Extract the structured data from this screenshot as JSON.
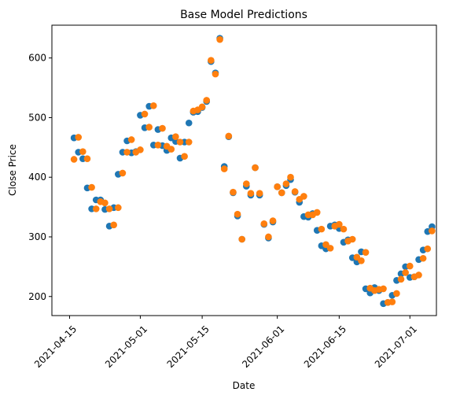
{
  "chart_data": {
    "type": "scatter",
    "title": "Base Model Predictions",
    "xlabel": "Date",
    "ylabel": "Close Price",
    "x_type": "date",
    "xlim": [
      "2021-04-11",
      "2021-07-07"
    ],
    "ylim": [
      168,
      655
    ],
    "x_ticks": [
      "2021-04-15",
      "2021-05-01",
      "2021-05-15",
      "2021-06-01",
      "2021-06-15",
      "2021-07-01"
    ],
    "y_ticks": [
      200,
      300,
      400,
      500,
      600
    ],
    "grid": false,
    "legend": "none",
    "x": [
      "2021-04-16",
      "2021-04-17",
      "2021-04-18",
      "2021-04-19",
      "2021-04-20",
      "2021-04-21",
      "2021-04-22",
      "2021-04-23",
      "2021-04-24",
      "2021-04-25",
      "2021-04-26",
      "2021-04-27",
      "2021-04-28",
      "2021-04-29",
      "2021-04-30",
      "2021-05-01",
      "2021-05-02",
      "2021-05-03",
      "2021-05-04",
      "2021-05-05",
      "2021-05-06",
      "2021-05-07",
      "2021-05-08",
      "2021-05-09",
      "2021-05-10",
      "2021-05-11",
      "2021-05-12",
      "2021-05-13",
      "2021-05-14",
      "2021-05-15",
      "2021-05-16",
      "2021-05-17",
      "2021-05-18",
      "2021-05-19",
      "2021-05-20",
      "2021-05-21",
      "2021-05-22",
      "2021-05-23",
      "2021-05-24",
      "2021-05-25",
      "2021-05-26",
      "2021-05-27",
      "2021-05-28",
      "2021-05-29",
      "2021-05-30",
      "2021-05-31",
      "2021-06-01",
      "2021-06-02",
      "2021-06-03",
      "2021-06-04",
      "2021-06-05",
      "2021-06-06",
      "2021-06-07",
      "2021-06-08",
      "2021-06-09",
      "2021-06-10",
      "2021-06-11",
      "2021-06-12",
      "2021-06-13",
      "2021-06-14",
      "2021-06-15",
      "2021-06-16",
      "2021-06-17",
      "2021-06-18",
      "2021-06-19",
      "2021-06-20",
      "2021-06-21",
      "2021-06-22",
      "2021-06-23",
      "2021-06-24",
      "2021-06-25",
      "2021-06-26",
      "2021-06-27",
      "2021-06-28",
      "2021-06-29",
      "2021-06-30",
      "2021-07-01",
      "2021-07-02",
      "2021-07-03"
    ],
    "series": [
      {
        "color": "#1f77b4",
        "values": [
          466,
          442,
          431,
          382,
          347,
          362,
          362,
          346,
          318,
          349,
          405,
          442,
          461,
          441,
          443,
          504,
          483,
          519,
          454,
          480,
          453,
          445,
          466,
          460,
          432,
          459,
          491,
          509,
          510,
          517,
          527,
          594,
          575,
          633,
          418,
          468,
          374,
          335,
          296,
          385,
          370,
          416,
          370,
          321,
          298,
          325,
          384,
          374,
          386,
          396,
          375,
          358,
          334,
          333,
          339,
          311,
          285,
          280,
          318,
          320,
          314,
          291,
          295,
          265,
          258,
          275,
          213,
          206,
          215,
          210,
          188,
          190,
          202,
          227,
          238,
          250,
          232,
          233,
          262
        ],
        "values_late": [
          278,
          309,
          317
        ]
      },
      {
        "color": "#ff7f0e",
        "values": [
          430,
          467,
          443,
          431,
          383,
          347,
          359,
          357,
          347,
          320,
          349,
          407,
          442,
          463,
          442,
          446,
          506,
          484,
          520,
          454,
          482,
          452,
          447,
          468,
          459,
          435,
          459,
          511,
          513,
          518,
          529,
          596,
          573,
          631,
          414,
          469,
          375,
          338,
          296,
          389,
          373,
          416,
          373,
          322,
          300,
          327,
          384,
          374,
          389,
          400,
          376,
          363,
          368,
          337,
          337,
          341,
          313,
          287,
          281,
          318,
          321,
          313,
          293,
          296,
          266,
          260,
          274,
          214,
          210,
          212,
          213,
          190,
          191,
          205,
          229,
          240,
          251,
          233,
          236
        ],
        "values_late": [
          264,
          280,
          310
        ]
      }
    ]
  }
}
